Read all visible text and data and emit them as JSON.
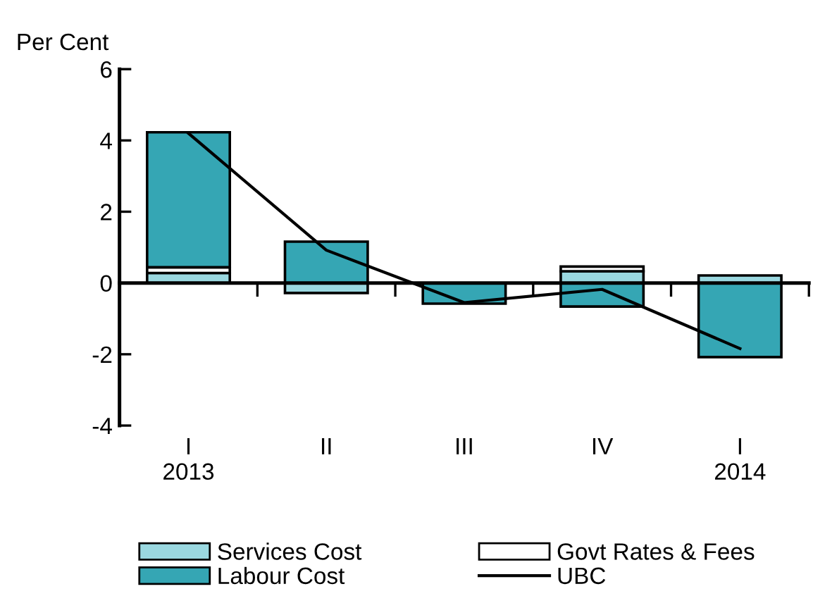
{
  "chart_data": {
    "type": "bar",
    "stacked": true,
    "ylabel": "Per Cent",
    "categories": [
      "I\n2013",
      "II",
      "III",
      "IV",
      "I\n2014"
    ],
    "series": [
      {
        "name": "Services Cost",
        "color": "#9ad8e0",
        "values": [
          0.28,
          -0.28,
          null,
          0.33,
          0.21
        ]
      },
      {
        "name": "Govt Rates & Fees",
        "color": "#ffffff",
        "values": [
          0.16,
          null,
          null,
          0.13,
          null
        ]
      },
      {
        "name": "Labour Cost",
        "color": "#35a6b4",
        "values": [
          3.79,
          1.16,
          -0.58,
          -0.66,
          -2.08
        ]
      },
      {
        "name": "UBC",
        "type": "line",
        "color": "#000000",
        "values": [
          4.2,
          0.92,
          -0.55,
          -0.18,
          -1.84
        ]
      }
    ],
    "ylim": [
      -4,
      6
    ],
    "yticks": [
      -4,
      -2,
      0,
      2,
      4,
      6
    ],
    "legend": "bottom"
  }
}
